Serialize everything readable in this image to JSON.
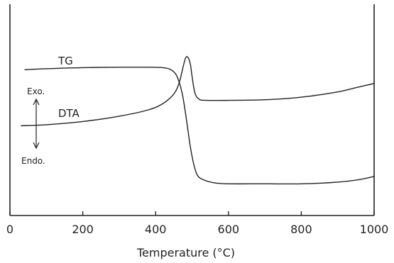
{
  "chart_data": {
    "type": "line",
    "xlabel": "Temperature (°C)",
    "ylabel": "",
    "xlim": [
      0,
      1000
    ],
    "xticks": [
      0,
      200,
      400,
      600,
      800,
      1000
    ],
    "xtick_labels": [
      "0",
      "200",
      "400",
      "600",
      "800",
      "1000"
    ],
    "grid": false,
    "series": [
      {
        "name": "TG",
        "x": [
          40,
          100,
          200,
          300,
          380,
          420,
          440,
          455,
          465,
          475,
          485,
          495,
          505,
          515,
          530,
          560,
          600,
          700,
          800,
          900,
          960,
          1000
        ],
        "y": [
          0.69,
          0.695,
          0.7,
          0.702,
          0.702,
          0.7,
          0.692,
          0.67,
          0.63,
          0.56,
          0.45,
          0.33,
          0.24,
          0.19,
          0.17,
          0.155,
          0.15,
          0.15,
          0.15,
          0.158,
          0.17,
          0.185
        ]
      },
      {
        "name": "DTA",
        "x": [
          30,
          100,
          200,
          300,
          380,
          420,
          450,
          465,
          475,
          482,
          488,
          495,
          500,
          508,
          520,
          540,
          600,
          700,
          800,
          900,
          950,
          1000
        ],
        "y": [
          0.425,
          0.43,
          0.445,
          0.47,
          0.5,
          0.53,
          0.575,
          0.63,
          0.7,
          0.745,
          0.75,
          0.72,
          0.66,
          0.58,
          0.55,
          0.545,
          0.545,
          0.548,
          0.56,
          0.585,
          0.605,
          0.625
        ]
      }
    ],
    "annotations": {
      "exo": "Exo.",
      "endo": "Endo."
    }
  },
  "colors": {
    "ink": "#222222",
    "background": "#ffffff"
  }
}
